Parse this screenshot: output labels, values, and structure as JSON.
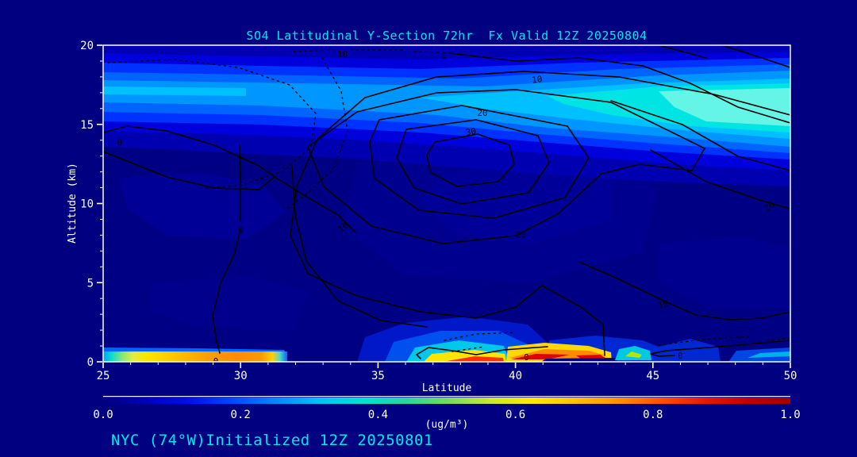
{
  "title": "SO4 Latitudinal Y-Section 72hr  Fx Valid 12Z 20250804",
  "footer": "NYC (74°W)Initialized 12Z 20250801",
  "colors": {
    "background": "#000080",
    "title_text": "#00e8e8",
    "footer_text": "#00e8e8",
    "axis_text": "#ffffff",
    "frame": "#ffffff",
    "contour_line": "#000000"
  },
  "chart_data": {
    "type": "heatmap",
    "title": "SO4 Latitudinal Y-Section 72hr  Fx Valid 12Z 20250804",
    "footer_annotation": "NYC (74°W)Initialized 12Z 20250801",
    "xlabel": "Latitude",
    "ylabel": "Altitude (km)",
    "xlim": [
      25,
      50
    ],
    "ylim": [
      0,
      20
    ],
    "x_ticks": [
      25,
      30,
      35,
      40,
      45,
      50
    ],
    "x_minor_tick_interval": 1,
    "y_ticks": [
      0,
      5,
      10,
      15,
      20
    ],
    "y_minor_tick_interval": 1,
    "grid": false,
    "legend_position": "none",
    "colorbar": {
      "min": 0.0,
      "max": 1.0,
      "tick_labels": [
        "0.0",
        "0.2",
        "0.4",
        "0.6",
        "0.8",
        "1.0"
      ],
      "units_label": "(ug/m³)",
      "palette": [
        "#000080",
        "#0000b8",
        "#0010e8",
        "#0048ff",
        "#0088ff",
        "#00c0f8",
        "#00e0d8",
        "#20d8a0",
        "#70dc60",
        "#c8e830",
        "#ffe800",
        "#ffc000",
        "#ff9000",
        "#ff5000",
        "#e81800",
        "#c00000",
        "#a00000"
      ]
    },
    "shaded_field": {
      "name": "SO4 concentration (ug/m3), filled contours",
      "features": [
        {
          "region": "upper-atmosphere band 12-18 km, all latitudes",
          "approx_value": "0.1-0.5; brightest cyan (~0.4-0.5) near 14-16 km between lat 43-50"
        },
        {
          "region": "surface 0-0.7 km, lat 25-31.5",
          "approx_value": "0.3-0.8; orange maximum near lat 28-31"
        },
        {
          "region": "surface plume 0-2 km, lat 35-39.5",
          "approx_value": "0.2-1.0; yellow/red maximum at lat 37.5-39.5"
        },
        {
          "region": "surface 0-0.8 km, lat 39.5-43.5",
          "approx_value": "0.5-1.0; red streaks near lat 40-43"
        },
        {
          "region": "small plume near surface, lat 43.5-44.8",
          "approx_value": "0.4-0.7"
        },
        {
          "region": "mid troposphere 2-11 km",
          "approx_value": "< 0.1"
        }
      ]
    },
    "contour_overlay": {
      "labeled_levels": [
        0,
        10,
        20,
        30
      ],
      "style": "solid black lines; alternate/negative contours dotted",
      "annotations": [
        {
          "value": "10",
          "lat": 33.7,
          "alt": 19.7,
          "rot": 0
        },
        {
          "value": "0",
          "lat": 37.4,
          "alt": 19.6,
          "rot": 0
        },
        {
          "value": "10",
          "lat": 40.8,
          "alt": 18.1,
          "rot": -8
        },
        {
          "value": "20",
          "lat": 38.8,
          "alt": 16.0,
          "rot": 0
        },
        {
          "value": "30",
          "lat": 38.4,
          "alt": 14.8,
          "rot": -10
        },
        {
          "value": "0",
          "lat": 25.6,
          "alt": 14.1,
          "rot": 0
        },
        {
          "value": "20",
          "lat": 49.3,
          "alt": 10.1,
          "rot": -35
        },
        {
          "value": "0",
          "lat": 30.0,
          "alt": 8.6,
          "rot": 0
        },
        {
          "value": "10",
          "lat": 33.8,
          "alt": 8.8,
          "rot": -38
        },
        {
          "value": "20",
          "lat": 40.2,
          "alt": 8.3,
          "rot": 0
        },
        {
          "value": "10",
          "lat": 45.4,
          "alt": 3.9,
          "rot": -12
        },
        {
          "value": "0",
          "lat": 29.1,
          "alt": 0.3,
          "rot": 0
        },
        {
          "value": "0",
          "lat": 40.4,
          "alt": 0.55,
          "rot": 0
        },
        {
          "value": "0",
          "lat": 46.0,
          "alt": 0.65,
          "rot": 0
        }
      ]
    }
  }
}
